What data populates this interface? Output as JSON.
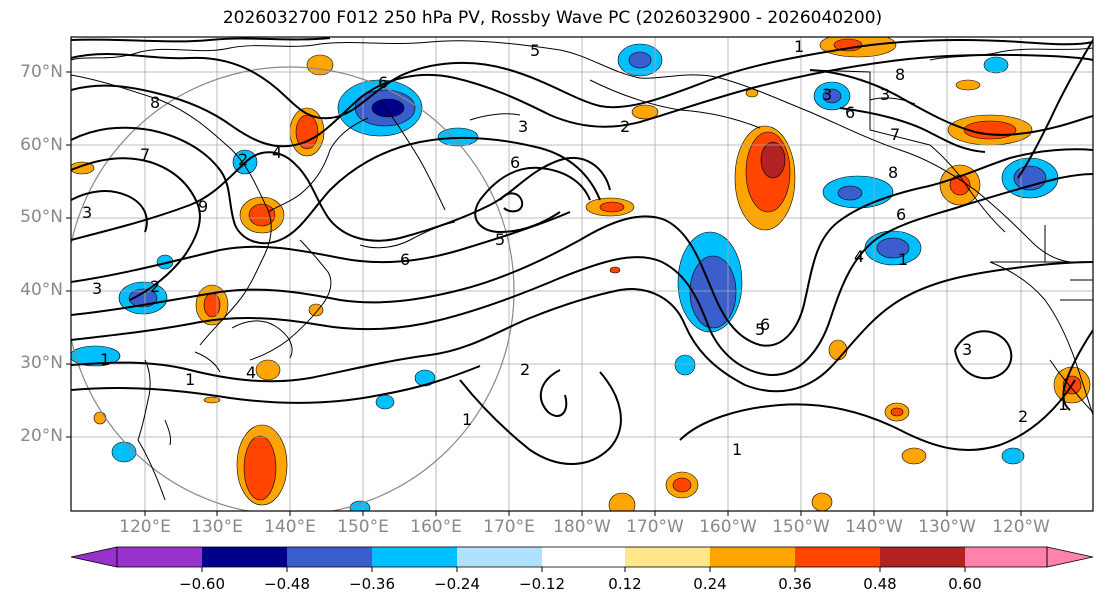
{
  "title": "2026032700 F012 250 hPa PV, Rossby Wave PC (2026032900 - 2026040200)",
  "lat_labels": [
    "70°N",
    "60°N",
    "50°N",
    "40°N",
    "30°N",
    "20°N"
  ],
  "lon_labels": [
    "120°E",
    "130°E",
    "140°E",
    "150°E",
    "160°E",
    "170°E",
    "180°W",
    "170°W",
    "160°W",
    "150°W",
    "140°W",
    "130°W",
    "120°W"
  ],
  "colorbar": {
    "labels": [
      "−0.60",
      "−0.48",
      "−0.36",
      "−0.24",
      "−0.12",
      "0.12",
      "0.24",
      "0.36",
      "0.48",
      "0.60"
    ],
    "colors": [
      "#9932cc",
      "#00008b",
      "#3a5fcd",
      "#00bfff",
      "#b0e2ff",
      "#ffffff",
      "#ffe78a",
      "#ffa500",
      "#ff4500",
      "#b22222",
      "#ff82ab"
    ]
  },
  "contour_labels": [
    "8",
    "5",
    "6",
    "3",
    "2",
    "1",
    "7",
    "4",
    "3",
    "5",
    "6",
    "2",
    "3",
    "1",
    "8",
    "3",
    "6",
    "7",
    "8",
    "6",
    "4",
    "1",
    "3",
    "6",
    "4",
    "1",
    "2",
    "1",
    "1",
    "2",
    "1",
    "5",
    "3",
    "6",
    "2",
    "9"
  ]
}
